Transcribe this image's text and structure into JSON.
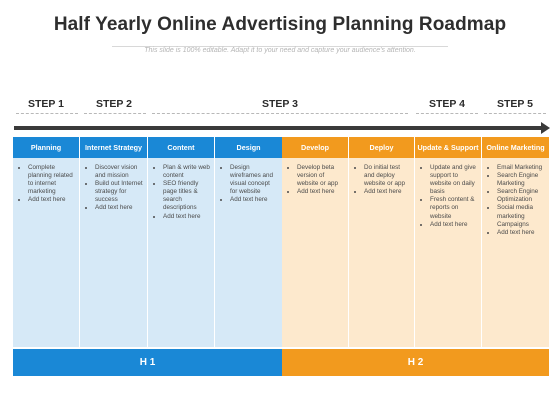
{
  "title": "Half Yearly Online Advertising Planning Roadmap",
  "subtitle": "This slide is 100% editable. Adapt it to your need and capture your audience's attention.",
  "steps": [
    "STEP 1",
    "STEP 2",
    "STEP 3",
    "STEP 4",
    "STEP 5"
  ],
  "columns": [
    {
      "label": "Planning",
      "items": [
        "Complete planning related to internet marketing",
        "Add text here"
      ]
    },
    {
      "label": "Internet Strategy",
      "items": [
        "Discover vision and mission",
        "Build out Internet strategy for success",
        "Add text here"
      ]
    },
    {
      "label": "Content",
      "items": [
        "Plan & write web content",
        "SEO friendly page titles & search descriptions",
        "Add text here"
      ]
    },
    {
      "label": "Design",
      "items": [
        "Design wireframes and visual concept for website",
        "Add text here"
      ]
    },
    {
      "label": "Develop",
      "items": [
        "Develop beta version of website or app",
        "Add text here"
      ]
    },
    {
      "label": "Deploy",
      "items": [
        "Do initial test and deploy website or app",
        "Add text here"
      ]
    },
    {
      "label": "Update & Support",
      "items": [
        "Update and give support to website on daily basis",
        "Fresh content & reports on website",
        "Add text here"
      ]
    },
    {
      "label": "Online Marketing",
      "items": [
        "Email Marketing",
        "Search Engine Marketing",
        "Search Engine Optimization",
        "Social media marketing Campaigns",
        "Add text here"
      ]
    }
  ],
  "halves": [
    "H 1",
    "H 2"
  ],
  "colors": {
    "blue": "#1a88d6",
    "orange": "#f29a1e",
    "blue_light": "#d6e9f7",
    "orange_light": "#fde9cd"
  }
}
